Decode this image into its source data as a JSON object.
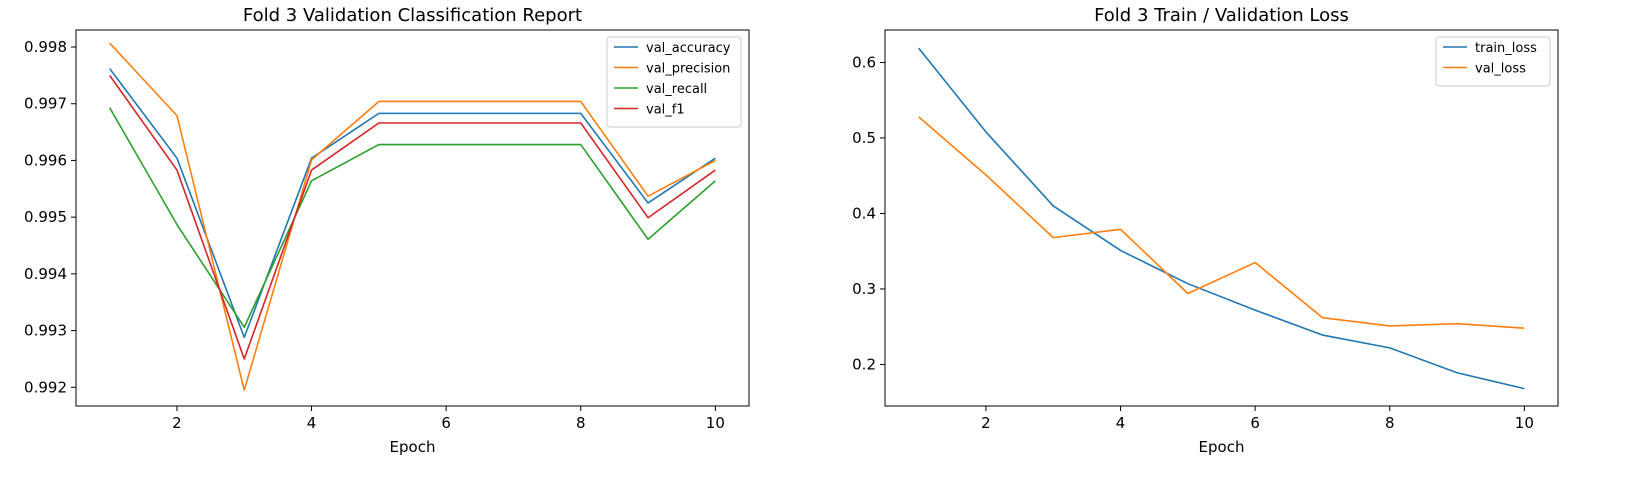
{
  "chart_data": [
    {
      "type": "line",
      "title": "Fold 3 Validation Classification Report",
      "xlabel": "Epoch",
      "ylabel": "",
      "x": [
        1,
        2,
        3,
        4,
        5,
        6,
        7,
        8,
        9,
        10
      ],
      "xlim": [
        0.5,
        10.5
      ],
      "ylim": [
        0.99167,
        0.9983
      ],
      "xticks": [
        2,
        4,
        6,
        8,
        10
      ],
      "yticks": [
        0.992,
        0.993,
        0.994,
        0.995,
        0.996,
        0.997,
        0.998
      ],
      "legend": "upper right",
      "grid": false,
      "series": [
        {
          "name": "val_accuracy",
          "color": "#1f77b4",
          "values": [
            0.99762,
            0.99604,
            0.99288,
            0.99604,
            0.99683,
            0.99683,
            0.99683,
            0.99683,
            0.99525,
            0.99604
          ]
        },
        {
          "name": "val_precision",
          "color": "#ff7f0e",
          "values": [
            0.99807,
            0.99679,
            0.99195,
            0.99601,
            0.99704,
            0.99704,
            0.99704,
            0.99704,
            0.99537,
            0.996
          ]
        },
        {
          "name": "val_recall",
          "color": "#2ca02c",
          "values": [
            0.99693,
            0.99487,
            0.99306,
            0.99564,
            0.99628,
            0.99628,
            0.99628,
            0.99628,
            0.99461,
            0.99564
          ]
        },
        {
          "name": "val_f1",
          "color": "#d62728",
          "values": [
            0.9975,
            0.99583,
            0.9925,
            0.99583,
            0.99666,
            0.99666,
            0.99666,
            0.99666,
            0.99499,
            0.99583
          ]
        }
      ]
    },
    {
      "type": "line",
      "title": "Fold 3 Train / Validation Loss",
      "xlabel": "Epoch",
      "ylabel": "",
      "x": [
        1,
        2,
        3,
        4,
        5,
        6,
        7,
        8,
        9,
        10
      ],
      "xlim": [
        0.5,
        10.5
      ],
      "ylim": [
        0.145,
        0.643
      ],
      "xticks": [
        2,
        4,
        6,
        8,
        10
      ],
      "yticks": [
        0.2,
        0.3,
        0.4,
        0.5,
        0.6
      ],
      "legend": "upper right",
      "grid": false,
      "series": [
        {
          "name": "train_loss",
          "color": "#1f77b4",
          "values": [
            0.619,
            0.508,
            0.41,
            0.351,
            0.307,
            0.272,
            0.239,
            0.222,
            0.189,
            0.168
          ]
        },
        {
          "name": "val_loss",
          "color": "#ff7f0e",
          "values": [
            0.528,
            0.451,
            0.368,
            0.379,
            0.294,
            0.335,
            0.262,
            0.251,
            0.254,
            0.248
          ]
        }
      ]
    }
  ]
}
